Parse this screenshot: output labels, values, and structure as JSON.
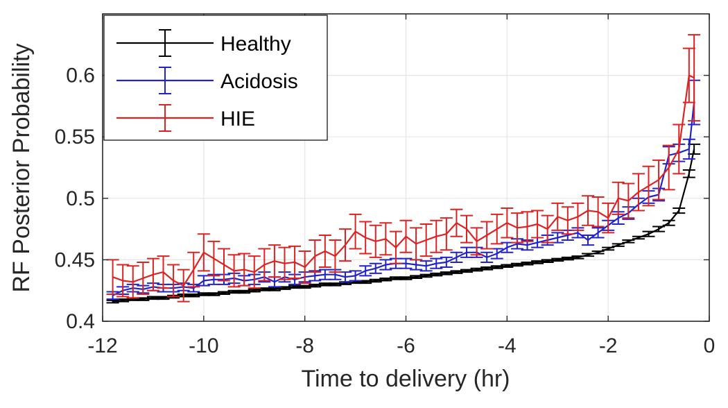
{
  "chart_data": {
    "type": "line",
    "title": "",
    "xlabel": "Time to delivery (hr)",
    "ylabel": "RF Posterior Probability",
    "xlim": [
      -12,
      0
    ],
    "ylim": [
      0.4,
      0.65
    ],
    "xticks": [
      -12,
      -10,
      -8,
      -6,
      -4,
      -2,
      0
    ],
    "xtick_labels": [
      "-12",
      "-10",
      "-8",
      "-6",
      "-4",
      "-2",
      "0"
    ],
    "yticks": [
      0.4,
      0.45,
      0.5,
      0.55,
      0.6
    ],
    "ytick_labels": [
      "0.4",
      "0.45",
      "0.5",
      "0.55",
      "0.6"
    ],
    "grid": true,
    "legend_position": "top-left",
    "x": [
      -11.8,
      -11.6,
      -11.4,
      -11.2,
      -11.0,
      -10.8,
      -10.6,
      -10.4,
      -10.2,
      -10.0,
      -9.8,
      -9.6,
      -9.4,
      -9.2,
      -9.0,
      -8.8,
      -8.6,
      -8.4,
      -8.2,
      -8.0,
      -7.8,
      -7.6,
      -7.4,
      -7.2,
      -7.0,
      -6.8,
      -6.6,
      -6.4,
      -6.2,
      -6.0,
      -5.8,
      -5.6,
      -5.4,
      -5.2,
      -5.0,
      -4.8,
      -4.6,
      -4.4,
      -4.2,
      -4.0,
      -3.8,
      -3.6,
      -3.4,
      -3.2,
      -3.0,
      -2.8,
      -2.6,
      -2.4,
      -2.2,
      -2.0,
      -1.8,
      -1.6,
      -1.4,
      -1.2,
      -1.0,
      -0.8,
      -0.6,
      -0.4,
      -0.3
    ],
    "series": [
      {
        "name": "Healthy",
        "color": "#000000",
        "values": [
          0.416,
          0.417,
          0.418,
          0.418,
          0.419,
          0.419,
          0.42,
          0.421,
          0.421,
          0.422,
          0.422,
          0.423,
          0.424,
          0.424,
          0.425,
          0.426,
          0.426,
          0.427,
          0.428,
          0.428,
          0.429,
          0.43,
          0.43,
          0.431,
          0.432,
          0.432,
          0.433,
          0.434,
          0.435,
          0.435,
          0.436,
          0.437,
          0.438,
          0.439,
          0.44,
          0.441,
          0.442,
          0.443,
          0.444,
          0.445,
          0.446,
          0.447,
          0.448,
          0.449,
          0.45,
          0.451,
          0.452,
          0.454,
          0.456,
          0.459,
          0.462,
          0.465,
          0.468,
          0.471,
          0.475,
          0.48,
          0.49,
          0.52,
          0.54
        ],
        "errors": [
          0.001,
          0.001,
          0.001,
          0.001,
          0.001,
          0.001,
          0.001,
          0.001,
          0.001,
          0.001,
          0.001,
          0.001,
          0.001,
          0.001,
          0.001,
          0.001,
          0.001,
          0.001,
          0.001,
          0.001,
          0.001,
          0.001,
          0.001,
          0.001,
          0.001,
          0.001,
          0.001,
          0.001,
          0.001,
          0.001,
          0.001,
          0.001,
          0.001,
          0.001,
          0.001,
          0.001,
          0.001,
          0.001,
          0.001,
          0.001,
          0.001,
          0.001,
          0.001,
          0.001,
          0.001,
          0.001,
          0.001,
          0.001,
          0.001,
          0.001,
          0.001,
          0.001,
          0.001,
          0.002,
          0.002,
          0.002,
          0.002,
          0.003,
          0.004
        ]
      },
      {
        "name": "Acidosis",
        "color": "#2222cc",
        "values": [
          0.421,
          0.425,
          0.427,
          0.426,
          0.428,
          0.427,
          0.427,
          0.428,
          0.427,
          0.433,
          0.434,
          0.434,
          0.435,
          0.433,
          0.434,
          0.436,
          0.432,
          0.436,
          0.434,
          0.436,
          0.437,
          0.438,
          0.438,
          0.436,
          0.437,
          0.441,
          0.443,
          0.446,
          0.447,
          0.447,
          0.446,
          0.445,
          0.447,
          0.448,
          0.452,
          0.456,
          0.456,
          0.452,
          0.455,
          0.46,
          0.463,
          0.462,
          0.464,
          0.466,
          0.468,
          0.47,
          0.472,
          0.466,
          0.472,
          0.478,
          0.484,
          0.488,
          0.495,
          0.501,
          0.503,
          0.535,
          0.537,
          0.54,
          0.578
        ],
        "errors": [
          0.003,
          0.003,
          0.003,
          0.003,
          0.003,
          0.003,
          0.003,
          0.003,
          0.003,
          0.004,
          0.004,
          0.004,
          0.004,
          0.004,
          0.004,
          0.004,
          0.004,
          0.004,
          0.004,
          0.004,
          0.004,
          0.004,
          0.004,
          0.004,
          0.004,
          0.004,
          0.004,
          0.004,
          0.004,
          0.004,
          0.004,
          0.004,
          0.004,
          0.004,
          0.004,
          0.004,
          0.004,
          0.004,
          0.004,
          0.004,
          0.004,
          0.004,
          0.004,
          0.004,
          0.004,
          0.004,
          0.004,
          0.004,
          0.004,
          0.004,
          0.005,
          0.005,
          0.005,
          0.005,
          0.005,
          0.007,
          0.007,
          0.008,
          0.018
        ]
      },
      {
        "name": "HIE",
        "color": "#dd2222",
        "values": [
          0.436,
          0.433,
          0.432,
          0.435,
          0.438,
          0.44,
          0.433,
          0.429,
          0.442,
          0.456,
          0.451,
          0.446,
          0.441,
          0.442,
          0.44,
          0.446,
          0.449,
          0.447,
          0.448,
          0.444,
          0.453,
          0.457,
          0.453,
          0.462,
          0.473,
          0.468,
          0.465,
          0.467,
          0.46,
          0.469,
          0.463,
          0.466,
          0.469,
          0.471,
          0.48,
          0.475,
          0.465,
          0.47,
          0.475,
          0.48,
          0.476,
          0.477,
          0.479,
          0.475,
          0.485,
          0.482,
          0.485,
          0.49,
          0.489,
          0.484,
          0.5,
          0.498,
          0.505,
          0.51,
          0.515,
          0.525,
          0.54,
          0.6,
          0.598
        ],
        "errors": [
          0.014,
          0.013,
          0.013,
          0.013,
          0.013,
          0.013,
          0.013,
          0.013,
          0.014,
          0.015,
          0.014,
          0.013,
          0.013,
          0.013,
          0.013,
          0.013,
          0.013,
          0.013,
          0.013,
          0.013,
          0.013,
          0.013,
          0.013,
          0.013,
          0.014,
          0.013,
          0.013,
          0.013,
          0.013,
          0.013,
          0.013,
          0.013,
          0.013,
          0.013,
          0.011,
          0.011,
          0.011,
          0.011,
          0.012,
          0.012,
          0.012,
          0.012,
          0.011,
          0.011,
          0.011,
          0.011,
          0.011,
          0.012,
          0.012,
          0.012,
          0.013,
          0.014,
          0.015,
          0.016,
          0.016,
          0.018,
          0.02,
          0.022,
          0.035
        ]
      }
    ]
  }
}
